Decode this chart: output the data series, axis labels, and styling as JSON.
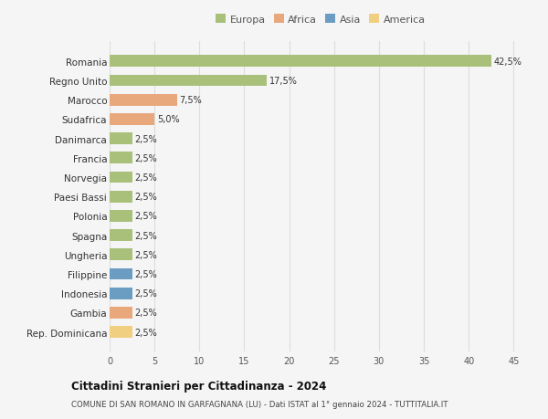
{
  "countries": [
    "Romania",
    "Regno Unito",
    "Marocco",
    "Sudafrica",
    "Danimarca",
    "Francia",
    "Norvegia",
    "Paesi Bassi",
    "Polonia",
    "Spagna",
    "Ungheria",
    "Filippine",
    "Indonesia",
    "Gambia",
    "Rep. Dominicana"
  ],
  "values": [
    42.5,
    17.5,
    7.5,
    5.0,
    2.5,
    2.5,
    2.5,
    2.5,
    2.5,
    2.5,
    2.5,
    2.5,
    2.5,
    2.5,
    2.5
  ],
  "labels": [
    "42,5%",
    "17,5%",
    "7,5%",
    "5,0%",
    "2,5%",
    "2,5%",
    "2,5%",
    "2,5%",
    "2,5%",
    "2,5%",
    "2,5%",
    "2,5%",
    "2,5%",
    "2,5%",
    "2,5%"
  ],
  "colors": [
    "#a8c07a",
    "#a8c07a",
    "#e8a87c",
    "#e8a87c",
    "#a8c07a",
    "#a8c07a",
    "#a8c07a",
    "#a8c07a",
    "#a8c07a",
    "#a8c07a",
    "#a8c07a",
    "#6b9dc2",
    "#6b9dc2",
    "#e8a87c",
    "#f0d080"
  ],
  "legend": {
    "Europa": "#a8c07a",
    "Africa": "#e8a87c",
    "Asia": "#6b9dc2",
    "America": "#f0d080"
  },
  "xlim": [
    0,
    47
  ],
  "xticks": [
    0,
    5,
    10,
    15,
    20,
    25,
    30,
    35,
    40,
    45
  ],
  "title": "Cittadini Stranieri per Cittadinanza - 2024",
  "subtitle": "COMUNE DI SAN ROMANO IN GARFAGNANA (LU) - Dati ISTAT al 1° gennaio 2024 - TUTTITALIA.IT",
  "background_color": "#f5f5f5",
  "grid_color": "#dddddd",
  "bar_height": 0.6
}
